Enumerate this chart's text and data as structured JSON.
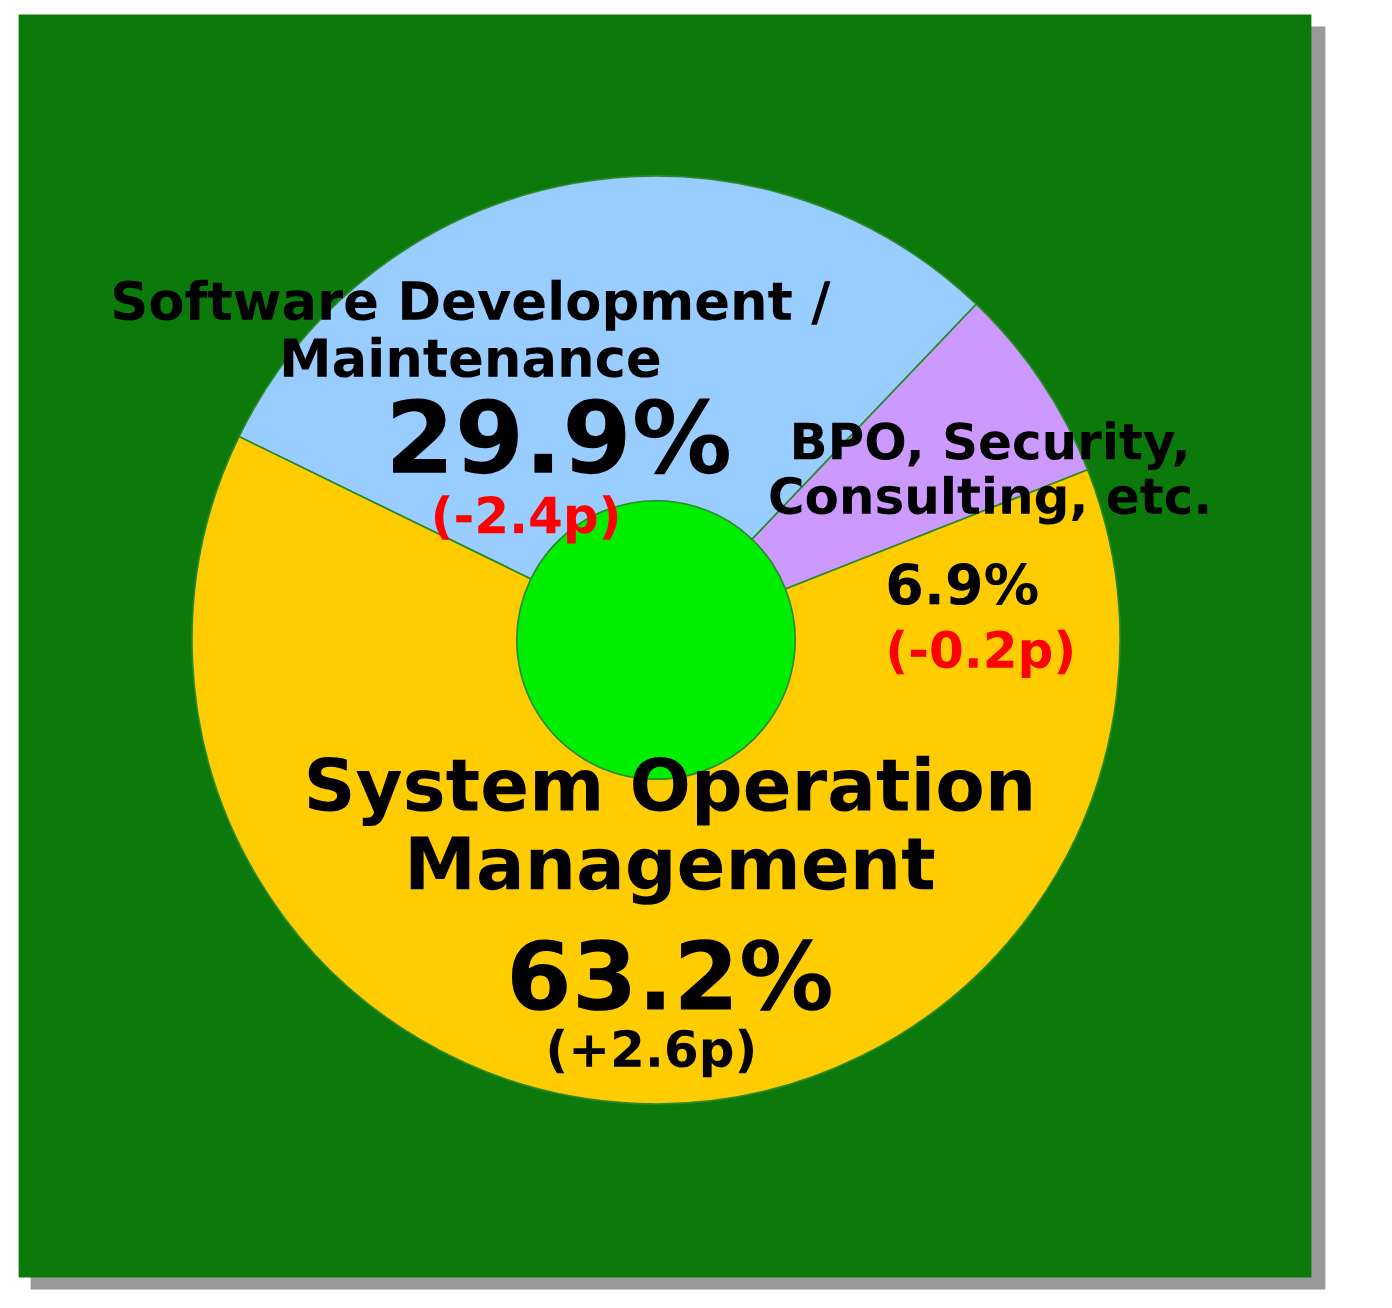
{
  "chart_data": {
    "type": "donut",
    "categories": [
      "Software Development / Maintenance",
      "BPO, Security, Consulting, etc.",
      "System Operation Management"
    ],
    "values": [
      29.9,
      6.9,
      63.2
    ],
    "colors": [
      "#99ccff",
      "#cc99ff",
      "#ffcc00"
    ],
    "value_labels": [
      "29.9%",
      "6.9%",
      "63.2%"
    ],
    "annotations": [
      "(-2.4p)",
      "(-0.2p)",
      "(+2.6p)"
    ],
    "legend": false
  }
}
